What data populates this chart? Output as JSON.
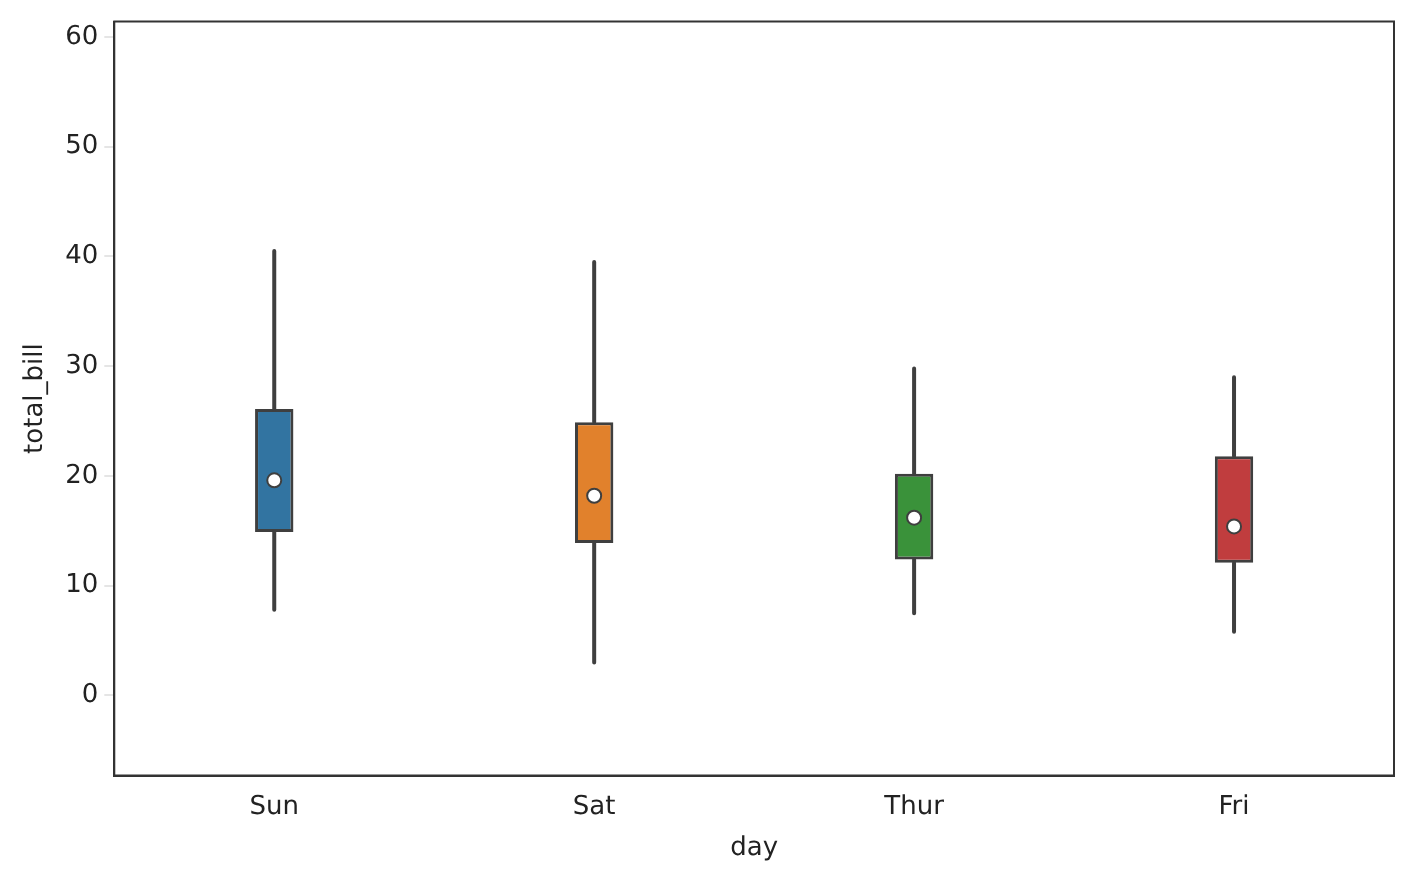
{
  "chart_data": {
    "type": "box",
    "xlabel": "day",
    "ylabel": "total_bill",
    "categories": [
      "Sun",
      "Sat",
      "Thur",
      "Fri"
    ],
    "colors": [
      "#3274a1",
      "#e1812c",
      "#3a923a",
      "#c03d3e"
    ],
    "boxes": [
      {
        "low": 7.8,
        "q1": 14.9,
        "median": 19.6,
        "q3": 26.1,
        "high": 40.5
      },
      {
        "low": 3,
        "q1": 13.9,
        "median": 18.2,
        "q3": 24.9,
        "high": 39.5
      },
      {
        "low": 7.5,
        "q1": 12.4,
        "median": 16.2,
        "q3": 20.2,
        "high": 29.8
      },
      {
        "low": 5.8,
        "q1": 12.1,
        "median": 15.4,
        "q3": 21.8,
        "high": 29
      }
    ],
    "ylim": [
      -7.3,
      61.4
    ],
    "yticks": [
      0,
      10,
      20,
      30,
      40,
      50,
      60
    ],
    "grid": false,
    "legend": false
  }
}
